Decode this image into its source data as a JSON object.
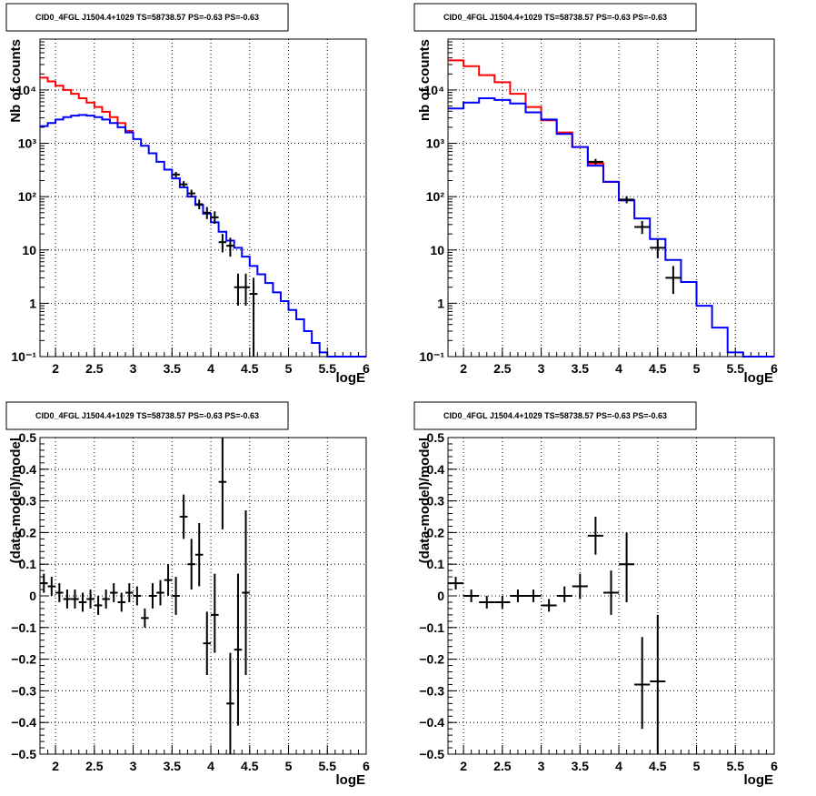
{
  "chart_data": [
    {
      "type": "line",
      "title": "CID0_4FGL J1504.4+1029 TS=58738.57 PS=-0.63 PS=-0.63",
      "xlabel": "logE",
      "ylabel": "Nb of counts",
      "xlim": [
        1.8,
        6.0
      ],
      "ylim": [
        0.1,
        90000
      ],
      "yscale": "log",
      "grid": true,
      "xticks": [
        "2",
        "2.5",
        "3",
        "3.5",
        "4",
        "4.5",
        "5",
        "5.5",
        "6"
      ],
      "yticks": [
        "10⁻¹",
        "1",
        "10",
        "10²",
        "10³",
        "10⁴"
      ],
      "series": [
        {
          "color": "#ff0000",
          "style": "step",
          "bin_edges": [
            1.8,
            1.9,
            2.0,
            2.1,
            2.2,
            2.3,
            2.4,
            2.5,
            2.6,
            2.7,
            2.8,
            2.9,
            3.0
          ],
          "values": [
            17000,
            14500,
            12000,
            10000,
            8500,
            7000,
            5800,
            4800,
            3900,
            3100,
            2400,
            1700
          ]
        },
        {
          "color": "#0000ff",
          "style": "step",
          "bin_edges": [
            1.8,
            1.9,
            2.0,
            2.1,
            2.2,
            2.3,
            2.4,
            2.5,
            2.6,
            2.7,
            2.8,
            2.9,
            3.0,
            3.1,
            3.2,
            3.3,
            3.4,
            3.5,
            3.6,
            3.7,
            3.8,
            3.9,
            4.0,
            4.1,
            4.2,
            4.3,
            4.4,
            4.5,
            4.6,
            4.7,
            4.8,
            4.9,
            5.0,
            5.1,
            5.2,
            5.3,
            5.4,
            5.5,
            5.6,
            5.7,
            5.8,
            5.9,
            6.0
          ],
          "values": [
            2100,
            2400,
            2800,
            3100,
            3300,
            3400,
            3300,
            3100,
            2800,
            2400,
            2000,
            1600,
            1200,
            900,
            650,
            450,
            320,
            220,
            150,
            100,
            70,
            48,
            33,
            22,
            15,
            11,
            7.5,
            5,
            3.5,
            2.4,
            1.6,
            1.1,
            0.75,
            0.5,
            0.3,
            0.18,
            0.12,
            0.1,
            0.1,
            0.1,
            0.1,
            0.1
          ]
        },
        {
          "color": "#000000",
          "style": "errorbar",
          "points": [
            {
              "x": 3.55,
              "xerr": 0.05,
              "y": 260,
              "ylo": 230,
              "yhi": 290
            },
            {
              "x": 3.65,
              "xerr": 0.05,
              "y": 170,
              "ylo": 148,
              "yhi": 195
            },
            {
              "x": 3.75,
              "xerr": 0.05,
              "y": 115,
              "ylo": 97,
              "yhi": 135
            },
            {
              "x": 3.85,
              "xerr": 0.05,
              "y": 72,
              "ylo": 58,
              "yhi": 88
            },
            {
              "x": 3.95,
              "xerr": 0.05,
              "y": 50,
              "ylo": 38,
              "yhi": 64
            },
            {
              "x": 4.05,
              "xerr": 0.05,
              "y": 41,
              "ylo": 31,
              "yhi": 53
            },
            {
              "x": 4.15,
              "xerr": 0.05,
              "y": 14,
              "ylo": 9,
              "yhi": 20
            },
            {
              "x": 4.25,
              "xerr": 0.05,
              "y": 12,
              "ylo": 7.5,
              "yhi": 17
            },
            {
              "x": 4.35,
              "xerr": 0.05,
              "y": 2,
              "ylo": 0.9,
              "yhi": 3.6
            },
            {
              "x": 4.45,
              "xerr": 0.05,
              "y": 2,
              "ylo": 0.9,
              "yhi": 3.6
            },
            {
              "x": 4.55,
              "xerr": 0.05,
              "y": 1.5,
              "ylo": 0.1,
              "yhi": 3
            }
          ]
        }
      ]
    },
    {
      "type": "line",
      "title": "CID0_4FGL J1504.4+1029 TS=58738.57 PS=-0.63 PS=-0.63",
      "xlabel": "logE",
      "ylabel": "nb of counts",
      "xlim": [
        1.8,
        6.0
      ],
      "ylim": [
        0.1,
        90000
      ],
      "yscale": "log",
      "grid": true,
      "xticks": [
        "2",
        "2.5",
        "3",
        "3.5",
        "4",
        "4.5",
        "5",
        "5.5",
        "6"
      ],
      "yticks": [
        "10⁻¹",
        "1",
        "10",
        "10²",
        "10³",
        "10⁴"
      ],
      "series": [
        {
          "color": "#ff0000",
          "style": "step",
          "bin_edges": [
            1.8,
            2.0,
            2.2,
            2.4,
            2.6,
            2.8,
            3.0,
            3.2,
            3.4,
            3.6,
            3.8,
            4.0,
            4.2
          ],
          "values": [
            36000,
            28000,
            19000,
            14000,
            8500,
            4800,
            2700,
            1600,
            850,
            420,
            190,
            85
          ]
        },
        {
          "color": "#0000ff",
          "style": "step",
          "bin_edges": [
            1.8,
            2.0,
            2.2,
            2.4,
            2.6,
            2.8,
            3.0,
            3.2,
            3.4,
            3.6,
            3.8,
            4.0,
            4.2,
            4.4,
            4.6,
            4.8,
            5.0,
            5.2,
            5.4,
            5.6,
            5.8,
            6.0
          ],
          "values": [
            4500,
            5800,
            7000,
            6500,
            5600,
            3800,
            2800,
            1500,
            850,
            380,
            190,
            85,
            39,
            16,
            6.5,
            2.5,
            0.9,
            0.35,
            0.12,
            0.1,
            0.1
          ]
        },
        {
          "color": "#000000",
          "style": "errorbar",
          "points": [
            {
              "x": 3.7,
              "xerr": 0.1,
              "y": 450,
              "ylo": 400,
              "yhi": 510
            },
            {
              "x": 4.1,
              "xerr": 0.1,
              "y": 88,
              "ylo": 75,
              "yhi": 102
            },
            {
              "x": 4.3,
              "xerr": 0.1,
              "y": 27,
              "ylo": 20,
              "yhi": 35
            },
            {
              "x": 4.5,
              "xerr": 0.1,
              "y": 11,
              "ylo": 7,
              "yhi": 16
            },
            {
              "x": 4.7,
              "xerr": 0.1,
              "y": 3,
              "ylo": 1.5,
              "yhi": 5
            }
          ]
        }
      ]
    },
    {
      "type": "scatter",
      "title": "CID0_4FGL J1504.4+1029 TS=58738.57 PS=-0.63 PS=-0.63",
      "xlabel": "logE",
      "ylabel": "(data-model)/model",
      "xlim": [
        1.8,
        6.0
      ],
      "ylim": [
        -0.5,
        0.5
      ],
      "grid": true,
      "xticks": [
        "2",
        "2.5",
        "3",
        "3.5",
        "4",
        "4.5",
        "5",
        "5.5",
        "6"
      ],
      "yticks": [
        "−0.5",
        "−0.4",
        "−0.3",
        "−0.2",
        "−0.1",
        "0",
        "0.1",
        "0.2",
        "0.3",
        "0.4",
        "0.5"
      ],
      "series": [
        {
          "color": "#000000",
          "style": "errorbar",
          "points": [
            {
              "x": 1.85,
              "xerr": 0.05,
              "y": 0.04,
              "ylo": 0.01,
              "yhi": 0.07
            },
            {
              "x": 1.95,
              "xerr": 0.05,
              "y": 0.03,
              "ylo": 0.0,
              "yhi": 0.06
            },
            {
              "x": 2.05,
              "xerr": 0.05,
              "y": 0.01,
              "ylo": -0.02,
              "yhi": 0.04
            },
            {
              "x": 2.15,
              "xerr": 0.05,
              "y": -0.01,
              "ylo": -0.04,
              "yhi": 0.02
            },
            {
              "x": 2.25,
              "xerr": 0.05,
              "y": -0.01,
              "ylo": -0.04,
              "yhi": 0.02
            },
            {
              "x": 2.35,
              "xerr": 0.05,
              "y": -0.02,
              "ylo": -0.05,
              "yhi": 0.01
            },
            {
              "x": 2.45,
              "xerr": 0.05,
              "y": -0.01,
              "ylo": -0.04,
              "yhi": 0.02
            },
            {
              "x": 2.55,
              "xerr": 0.05,
              "y": -0.03,
              "ylo": -0.06,
              "yhi": 0.0
            },
            {
              "x": 2.65,
              "xerr": 0.05,
              "y": -0.01,
              "ylo": -0.04,
              "yhi": 0.02
            },
            {
              "x": 2.75,
              "xerr": 0.05,
              "y": 0.01,
              "ylo": -0.02,
              "yhi": 0.04
            },
            {
              "x": 2.85,
              "xerr": 0.05,
              "y": -0.02,
              "ylo": -0.05,
              "yhi": 0.01
            },
            {
              "x": 2.95,
              "xerr": 0.05,
              "y": 0.01,
              "ylo": -0.02,
              "yhi": 0.04
            },
            {
              "x": 3.05,
              "xerr": 0.05,
              "y": 0.0,
              "ylo": -0.03,
              "yhi": 0.03
            },
            {
              "x": 3.15,
              "xerr": 0.05,
              "y": -0.07,
              "ylo": -0.1,
              "yhi": -0.04
            },
            {
              "x": 3.25,
              "xerr": 0.05,
              "y": 0.0,
              "ylo": -0.04,
              "yhi": 0.04
            },
            {
              "x": 3.35,
              "xerr": 0.05,
              "y": 0.01,
              "ylo": -0.03,
              "yhi": 0.05
            },
            {
              "x": 3.45,
              "xerr": 0.05,
              "y": 0.05,
              "ylo": 0.0,
              "yhi": 0.1
            },
            {
              "x": 3.55,
              "xerr": 0.05,
              "y": 0.0,
              "ylo": -0.06,
              "yhi": 0.06
            },
            {
              "x": 3.65,
              "xerr": 0.05,
              "y": 0.25,
              "ylo": 0.18,
              "yhi": 0.32
            },
            {
              "x": 3.75,
              "xerr": 0.05,
              "y": 0.1,
              "ylo": 0.02,
              "yhi": 0.18
            },
            {
              "x": 3.85,
              "xerr": 0.05,
              "y": 0.13,
              "ylo": 0.03,
              "yhi": 0.23
            },
            {
              "x": 3.95,
              "xerr": 0.05,
              "y": -0.15,
              "ylo": -0.25,
              "yhi": -0.05
            },
            {
              "x": 4.05,
              "xerr": 0.05,
              "y": -0.06,
              "ylo": -0.18,
              "yhi": 0.07
            },
            {
              "x": 4.15,
              "xerr": 0.05,
              "y": 0.36,
              "ylo": 0.21,
              "yhi": 0.5
            },
            {
              "x": 4.25,
              "xerr": 0.05,
              "y": -0.34,
              "ylo": -0.5,
              "yhi": -0.18
            },
            {
              "x": 4.35,
              "xerr": 0.05,
              "y": -0.17,
              "ylo": -0.41,
              "yhi": 0.07
            },
            {
              "x": 4.45,
              "xerr": 0.05,
              "y": 0.01,
              "ylo": -0.25,
              "yhi": 0.27
            }
          ]
        }
      ]
    },
    {
      "type": "scatter",
      "title": "CID0_4FGL J1504.4+1029 TS=58738.57 PS=-0.63 PS=-0.63",
      "xlabel": "logE",
      "ylabel": "(data-model)/model",
      "xlim": [
        1.8,
        6.0
      ],
      "ylim": [
        -0.5,
        0.5
      ],
      "grid": true,
      "xticks": [
        "2",
        "2.5",
        "3",
        "3.5",
        "4",
        "4.5",
        "5",
        "5.5",
        "6"
      ],
      "yticks": [
        "−0.5",
        "−0.4",
        "−0.3",
        "−0.2",
        "−0.1",
        "0",
        "0.1",
        "0.2",
        "0.3",
        "0.4",
        "0.5"
      ],
      "series": [
        {
          "color": "#000000",
          "style": "errorbar",
          "points": [
            {
              "x": 1.9,
              "xerr": 0.1,
              "y": 0.04,
              "ylo": 0.02,
              "yhi": 0.06
            },
            {
              "x": 2.1,
              "xerr": 0.1,
              "y": 0.0,
              "ylo": -0.02,
              "yhi": 0.02
            },
            {
              "x": 2.3,
              "xerr": 0.1,
              "y": -0.02,
              "ylo": -0.04,
              "yhi": 0.0
            },
            {
              "x": 2.5,
              "xerr": 0.1,
              "y": -0.02,
              "ylo": -0.04,
              "yhi": 0.0
            },
            {
              "x": 2.7,
              "xerr": 0.1,
              "y": 0.0,
              "ylo": -0.02,
              "yhi": 0.02
            },
            {
              "x": 2.9,
              "xerr": 0.1,
              "y": 0.0,
              "ylo": -0.02,
              "yhi": 0.02
            },
            {
              "x": 3.1,
              "xerr": 0.1,
              "y": -0.03,
              "ylo": -0.05,
              "yhi": -0.01
            },
            {
              "x": 3.3,
              "xerr": 0.1,
              "y": 0.0,
              "ylo": -0.02,
              "yhi": 0.03
            },
            {
              "x": 3.5,
              "xerr": 0.1,
              "y": 0.03,
              "ylo": -0.01,
              "yhi": 0.07
            },
            {
              "x": 3.7,
              "xerr": 0.1,
              "y": 0.19,
              "ylo": 0.13,
              "yhi": 0.25
            },
            {
              "x": 3.9,
              "xerr": 0.1,
              "y": 0.01,
              "ylo": -0.06,
              "yhi": 0.08
            },
            {
              "x": 4.1,
              "xerr": 0.1,
              "y": 0.1,
              "ylo": -0.02,
              "yhi": 0.2
            },
            {
              "x": 4.3,
              "xerr": 0.1,
              "y": -0.28,
              "ylo": -0.42,
              "yhi": -0.13
            },
            {
              "x": 4.5,
              "xerr": 0.1,
              "y": -0.27,
              "ylo": -0.5,
              "yhi": -0.06
            }
          ]
        }
      ]
    }
  ]
}
